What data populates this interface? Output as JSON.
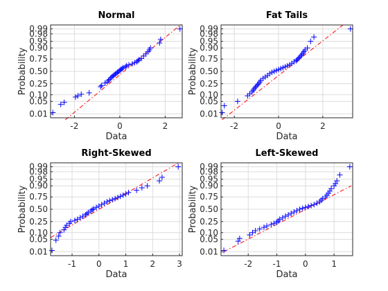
{
  "figure": {
    "background": "#ffffff"
  },
  "colors": {
    "marker": "#0000ff",
    "reference_line": "#ff0000",
    "grid": "#dcdcdc",
    "axes": "#262626"
  },
  "chart_data": [
    {
      "type": "scatter",
      "subtype": "normal-probability-plot",
      "title": "Normal",
      "xlabel": "Data",
      "ylabel": "Probability",
      "xlim": [
        -3.05,
        2.75
      ],
      "xticks": [
        -2,
        0,
        2
      ],
      "yscale": "probit",
      "yticks": [
        0.01,
        0.05,
        0.1,
        0.25,
        0.5,
        0.75,
        0.9,
        0.95,
        0.98,
        0.99
      ],
      "ytick_labels": [
        "0.01",
        "0.05",
        "0.10",
        "0.25",
        "0.50",
        "0.75",
        "0.90",
        "0.95",
        "0.98",
        "0.99"
      ],
      "grid": true,
      "marker": "+",
      "series": [
        {
          "x": [
            -2.95,
            -2.6,
            -2.45,
            -1.95,
            -1.85,
            -1.7,
            -1.35,
            -0.85,
            -0.8,
            -0.65,
            -0.55,
            -0.5,
            -0.45,
            -0.4,
            -0.35,
            -0.3,
            -0.25,
            -0.2,
            -0.15,
            -0.1,
            -0.05,
            0.0,
            0.05,
            0.1,
            0.15,
            0.25,
            0.3,
            0.4,
            0.55,
            0.65,
            0.75,
            0.8,
            0.85,
            0.95,
            1.05,
            1.15,
            1.25,
            1.3,
            1.35,
            1.75,
            1.8,
            2.65
          ],
          "y": [
            0.012,
            0.035,
            0.045,
            0.08,
            0.09,
            0.105,
            0.12,
            0.2,
            0.22,
            0.26,
            0.28,
            0.31,
            0.33,
            0.36,
            0.38,
            0.4,
            0.42,
            0.44,
            0.46,
            0.48,
            0.5,
            0.52,
            0.54,
            0.56,
            0.58,
            0.6,
            0.62,
            0.64,
            0.66,
            0.68,
            0.7,
            0.72,
            0.74,
            0.76,
            0.8,
            0.83,
            0.86,
            0.88,
            0.9,
            0.94,
            0.96,
            0.99
          ]
        }
      ],
      "reference_line": {
        "x": [
          -2.4,
          2.7
        ],
        "y": [
          0.004,
          0.995
        ]
      }
    },
    {
      "type": "scatter",
      "subtype": "normal-probability-plot",
      "title": "Fat Tails",
      "xlabel": "Data",
      "ylabel": "Probability",
      "xlim": [
        -2.6,
        3.35
      ],
      "xticks": [
        -2,
        0,
        2
      ],
      "yscale": "probit",
      "yticks": [
        0.01,
        0.05,
        0.1,
        0.25,
        0.5,
        0.75,
        0.9,
        0.95,
        0.98,
        0.99
      ],
      "ytick_labels": [
        "0.01",
        "0.05",
        "0.10",
        "0.25",
        "0.50",
        "0.75",
        "0.90",
        "0.95",
        "0.98",
        "0.99"
      ],
      "grid": true,
      "marker": "+",
      "series": [
        {
          "x": [
            -2.55,
            -2.45,
            -1.85,
            -1.4,
            -1.3,
            -1.2,
            -1.15,
            -1.1,
            -1.05,
            -1.0,
            -0.95,
            -0.9,
            -0.85,
            -0.8,
            -0.7,
            -0.6,
            -0.5,
            -0.4,
            -0.3,
            -0.2,
            -0.1,
            0.0,
            0.1,
            0.2,
            0.3,
            0.4,
            0.5,
            0.6,
            0.7,
            0.8,
            0.85,
            0.9,
            0.95,
            1.0,
            1.05,
            1.1,
            1.15,
            1.2,
            1.3,
            1.45,
            1.6,
            3.25
          ],
          "y": [
            0.012,
            0.03,
            0.05,
            0.09,
            0.11,
            0.13,
            0.15,
            0.17,
            0.19,
            0.21,
            0.23,
            0.25,
            0.28,
            0.31,
            0.35,
            0.38,
            0.41,
            0.45,
            0.48,
            0.5,
            0.52,
            0.54,
            0.56,
            0.58,
            0.6,
            0.62,
            0.64,
            0.67,
            0.7,
            0.72,
            0.74,
            0.76,
            0.78,
            0.8,
            0.82,
            0.84,
            0.86,
            0.88,
            0.9,
            0.95,
            0.97,
            0.99
          ]
        }
      ],
      "reference_line": {
        "x": [
          -2.55,
          2.95
        ],
        "y": [
          0.004,
          0.995
        ]
      }
    },
    {
      "type": "scatter",
      "subtype": "normal-probability-plot",
      "title": "Right-Skewed",
      "xlabel": "Data",
      "ylabel": "Probability",
      "xlim": [
        -1.8,
        3.1
      ],
      "xticks": [
        -1,
        0,
        1,
        2,
        3
      ],
      "yscale": "probit",
      "yticks": [
        0.01,
        0.05,
        0.1,
        0.25,
        0.5,
        0.75,
        0.9,
        0.95,
        0.98,
        0.99
      ],
      "ytick_labels": [
        "0.01",
        "0.05",
        "0.10",
        "0.25",
        "0.50",
        "0.75",
        "0.90",
        "0.95",
        "0.98",
        "0.99"
      ],
      "grid": true,
      "marker": "+",
      "series": [
        {
          "x": [
            -1.75,
            -1.6,
            -1.5,
            -1.45,
            -1.3,
            -1.25,
            -1.2,
            -1.1,
            -1.05,
            -0.9,
            -0.8,
            -0.7,
            -0.6,
            -0.5,
            -0.45,
            -0.4,
            -0.3,
            -0.25,
            -0.2,
            -0.1,
            0.0,
            0.1,
            0.2,
            0.3,
            0.4,
            0.5,
            0.6,
            0.7,
            0.8,
            0.9,
            1.0,
            1.1,
            1.4,
            1.6,
            1.8,
            2.25,
            2.35,
            2.95
          ],
          "y": [
            0.012,
            0.045,
            0.07,
            0.1,
            0.13,
            0.16,
            0.19,
            0.22,
            0.25,
            0.27,
            0.29,
            0.32,
            0.35,
            0.38,
            0.4,
            0.43,
            0.46,
            0.49,
            0.51,
            0.54,
            0.57,
            0.6,
            0.63,
            0.66,
            0.68,
            0.7,
            0.72,
            0.74,
            0.76,
            0.78,
            0.8,
            0.82,
            0.85,
            0.88,
            0.9,
            0.94,
            0.96,
            0.99
          ]
        }
      ],
      "reference_line": {
        "x": [
          -1.8,
          3.0
        ],
        "y": [
          0.06,
          0.995
        ]
      }
    },
    {
      "type": "scatter",
      "subtype": "normal-probability-plot",
      "title": "Left-Skewed",
      "xlabel": "Data",
      "ylabel": "Probability",
      "xlim": [
        -2.95,
        1.65
      ],
      "xticks": [
        -2,
        -1,
        0,
        1
      ],
      "yscale": "probit",
      "yticks": [
        0.01,
        0.05,
        0.1,
        0.25,
        0.5,
        0.75,
        0.9,
        0.95,
        0.98,
        0.99
      ],
      "ytick_labels": [
        "0.01",
        "0.05",
        "0.10",
        "0.25",
        "0.50",
        "0.75",
        "0.90",
        "0.95",
        "0.98",
        "0.99"
      ],
      "grid": true,
      "marker": "+",
      "series": [
        {
          "x": [
            -2.85,
            -2.35,
            -2.3,
            -1.95,
            -1.85,
            -1.75,
            -1.6,
            -1.45,
            -1.35,
            -1.2,
            -1.1,
            -1.0,
            -0.95,
            -0.9,
            -0.8,
            -0.7,
            -0.6,
            -0.5,
            -0.4,
            -0.3,
            -0.2,
            -0.1,
            0.0,
            0.1,
            0.2,
            0.3,
            0.4,
            0.5,
            0.55,
            0.6,
            0.7,
            0.75,
            0.8,
            0.85,
            0.9,
            1.0,
            1.05,
            1.1,
            1.2,
            1.55
          ],
          "y": [
            0.012,
            0.04,
            0.055,
            0.08,
            0.1,
            0.12,
            0.14,
            0.16,
            0.18,
            0.2,
            0.22,
            0.24,
            0.26,
            0.29,
            0.32,
            0.35,
            0.38,
            0.41,
            0.44,
            0.47,
            0.5,
            0.52,
            0.54,
            0.56,
            0.58,
            0.6,
            0.63,
            0.66,
            0.69,
            0.72,
            0.75,
            0.78,
            0.81,
            0.84,
            0.87,
            0.9,
            0.92,
            0.94,
            0.97,
            0.99
          ]
        }
      ],
      "reference_line": {
        "x": [
          -2.85,
          1.6
        ],
        "y": [
          0.01,
          0.9
        ]
      }
    }
  ]
}
